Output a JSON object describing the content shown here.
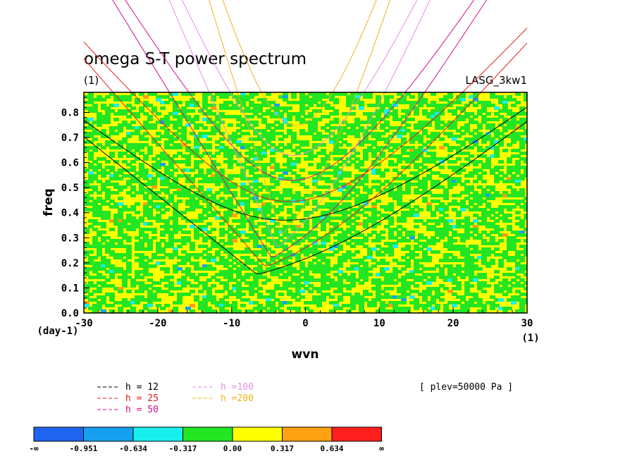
{
  "title": "omega S-T power spectrum",
  "subtitle": "(1)",
  "model": "LASG_3kw1",
  "level": "[ plev=50000 Pa ]",
  "chart_data": {
    "type": "heatmap",
    "title": "omega S-T power spectrum",
    "subtitle": "(1)",
    "xlabel": "wvn",
    "xunit": "(1)",
    "ylabel": "freq",
    "yunit": "(day-1)",
    "xlim": [
      -30,
      30
    ],
    "ylim": [
      0,
      0.88
    ],
    "xticks": [
      "-30",
      "-20",
      "-10",
      "0",
      "10",
      "20",
      "30"
    ],
    "yticks": [
      "0.0",
      "0.1",
      "0.2",
      "0.3",
      "0.4",
      "0.5",
      "0.6",
      "0.7",
      "0.8"
    ],
    "dispersion_curves": [
      {
        "label": "h = 12",
        "color": "#000000",
        "h": 12
      },
      {
        "label": "h = 25",
        "color": "#e0201c",
        "h": 25
      },
      {
        "label": "h = 50",
        "color": "#d0108c",
        "h": 50
      },
      {
        "label": "h =100",
        "color": "#e58fe0",
        "h": 100
      },
      {
        "label": "h =200",
        "color": "#f0b020",
        "h": 200
      }
    ],
    "colorbar": {
      "labels": [
        "-∞",
        "-0.951",
        "-0.634",
        "-0.317",
        "0.00",
        "0.317",
        "0.634",
        "∞"
      ],
      "colors": [
        "#1e64f0",
        "#18a0f0",
        "#18f0f0",
        "#22e622",
        "#ffff00",
        "#ffa010",
        "#ff1e1e"
      ]
    }
  }
}
